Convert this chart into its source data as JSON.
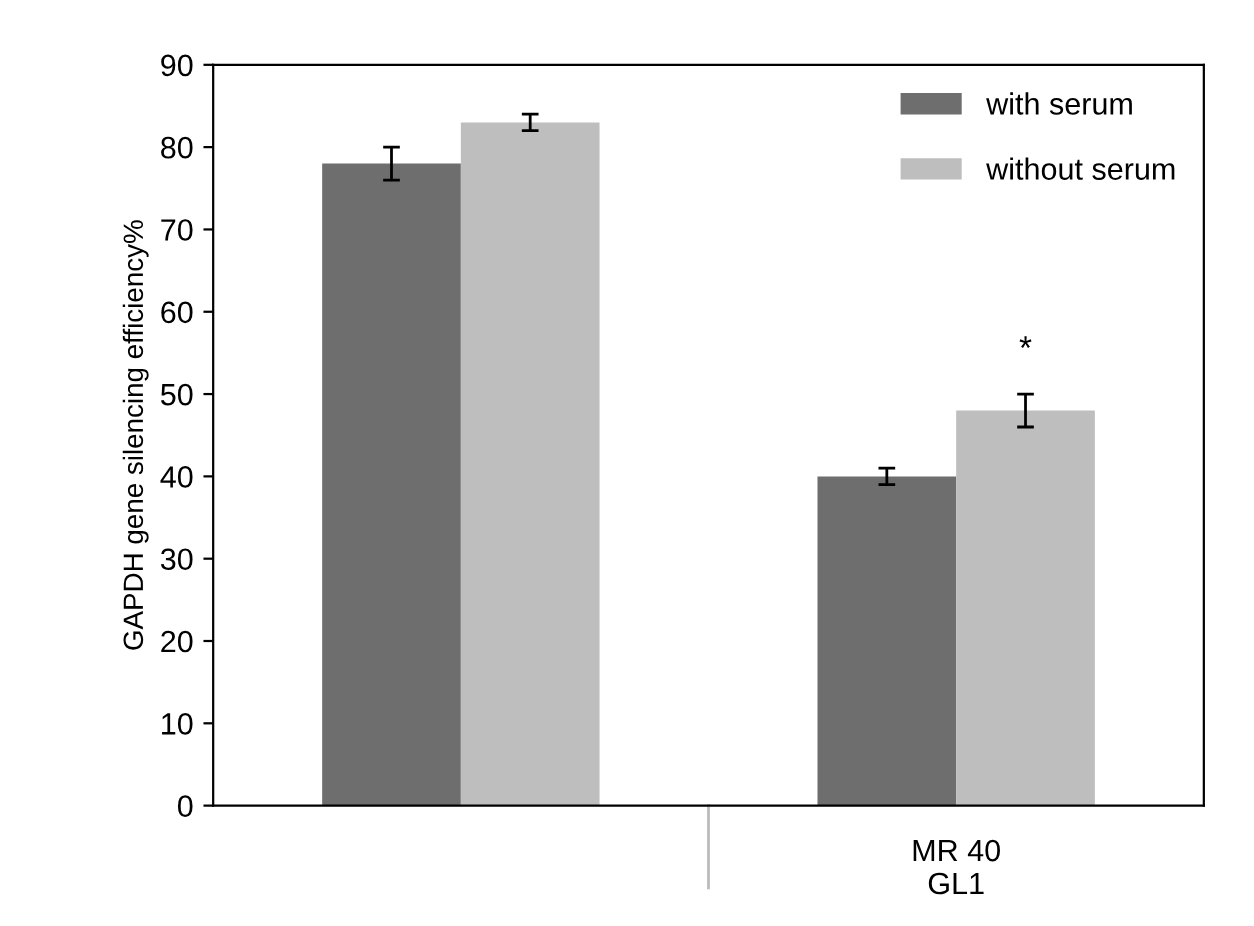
{
  "chart_data": {
    "type": "bar",
    "ylabel": "GAPDH gene silencing efficiency%",
    "categories": [
      null,
      "MR 40\nGL1"
    ],
    "series": [
      {
        "name": "with serum",
        "color": "#6e6e6e",
        "values": [
          78,
          40
        ],
        "errors": [
          2,
          1
        ]
      },
      {
        "name": "without serum",
        "color": "#bebebe",
        "values": [
          83,
          48
        ],
        "errors": [
          1,
          2
        ]
      }
    ],
    "annotations": [
      {
        "text": "*",
        "x": "MR 40\nGL1",
        "y": 48
      }
    ],
    "ylim": [
      0,
      90
    ],
    "yticks": [
      0,
      10,
      20,
      30,
      40,
      50,
      60,
      70,
      80,
      90
    ],
    "grid": false,
    "legend": "top right"
  }
}
